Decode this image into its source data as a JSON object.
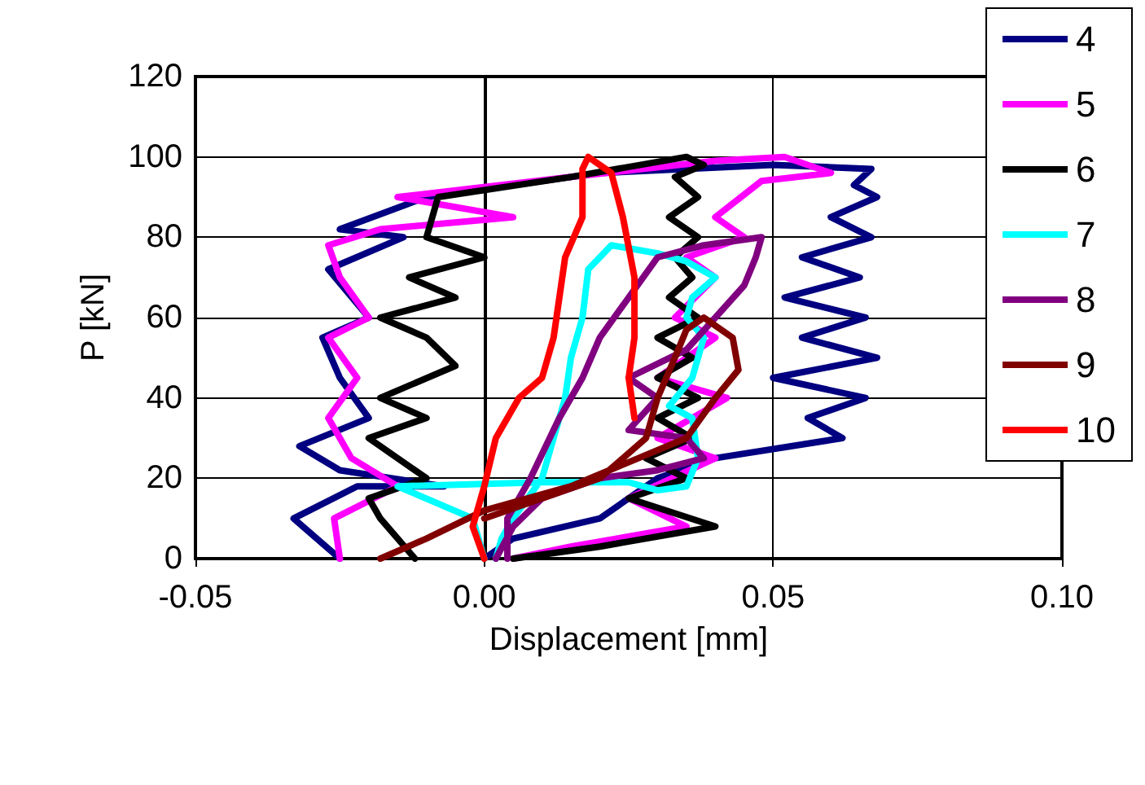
{
  "chart_data": {
    "type": "line",
    "xlabel": "Displacement [mm]",
    "ylabel": "P [kN]",
    "xlim": [
      -0.05,
      0.1
    ],
    "xticks": [
      {
        "value": -0.05,
        "label": "-0.05"
      },
      {
        "value": 0,
        "label": "0.00"
      },
      {
        "value": 0.05,
        "label": "0.05"
      },
      {
        "value": 0.1,
        "label": "0.10"
      }
    ],
    "ylim": [
      0,
      120
    ],
    "yticks": [
      0,
      20,
      40,
      60,
      80,
      100,
      120
    ],
    "grid": true,
    "legend": "right",
    "marker": "none",
    "line_style": "solid",
    "series": [
      {
        "name": "4",
        "color": "#000080",
        "x": [
          -0.025,
          -0.033,
          -0.022,
          -0.007,
          -0.025,
          -0.032,
          -0.02,
          -0.025,
          -0.028,
          -0.02,
          -0.027,
          -0.014,
          -0.025,
          -0.01,
          0.02,
          0.05,
          0.067,
          0.064,
          0.068,
          0.06,
          0.067,
          0.055,
          0.065,
          0.052,
          0.066,
          0.055,
          0.068,
          0.05,
          0.066,
          0.056,
          0.062,
          0.04,
          0.03,
          0.02,
          0.005,
          0.0
        ],
        "values": [
          0,
          10,
          18,
          18,
          22,
          28,
          35,
          45,
          55,
          60,
          72,
          80,
          82,
          90,
          96,
          98,
          97,
          93,
          90,
          85,
          80,
          75,
          70,
          65,
          60,
          55,
          50,
          45,
          40,
          35,
          30,
          25,
          20,
          10,
          5,
          0
        ]
      },
      {
        "name": "5",
        "color": "#ff00ff",
        "x": [
          -0.025,
          -0.026,
          -0.015,
          -0.023,
          -0.027,
          -0.022,
          -0.027,
          -0.02,
          -0.025,
          -0.027,
          -0.018,
          0.005,
          -0.015,
          0.015,
          0.04,
          0.052,
          0.06,
          0.048,
          0.04,
          0.045,
          0.035,
          0.04,
          0.033,
          0.04,
          0.03,
          0.042,
          0.03,
          0.04,
          0.025,
          0.035,
          0.015,
          0.005
        ],
        "values": [
          0,
          10,
          18,
          25,
          35,
          45,
          55,
          60,
          70,
          78,
          82,
          85,
          90,
          95,
          99,
          100,
          96,
          94,
          85,
          80,
          75,
          70,
          60,
          55,
          45,
          40,
          30,
          25,
          15,
          8,
          3,
          0
        ]
      },
      {
        "name": "6",
        "color": "#000000",
        "x": [
          -0.012,
          -0.018,
          -0.02,
          -0.01,
          -0.015,
          -0.02,
          -0.01,
          -0.018,
          -0.005,
          -0.01,
          -0.018,
          -0.005,
          -0.013,
          0.0,
          -0.01,
          -0.008,
          0.015,
          0.035,
          0.038,
          0.033,
          0.037,
          0.032,
          0.037,
          0.033,
          0.036,
          0.032,
          0.037,
          0.03,
          0.036,
          0.03,
          0.037,
          0.03,
          0.036,
          0.028,
          0.035,
          0.025,
          0.04,
          0.02,
          0.005
        ],
        "values": [
          0,
          10,
          15,
          20,
          25,
          30,
          35,
          40,
          48,
          55,
          60,
          65,
          70,
          75,
          80,
          90,
          95,
          100,
          98,
          95,
          90,
          85,
          80,
          75,
          70,
          65,
          60,
          55,
          50,
          45,
          40,
          35,
          30,
          25,
          20,
          15,
          8,
          3,
          0
        ]
      },
      {
        "name": "7",
        "color": "#00ffff",
        "x": [
          0,
          -0.002,
          -0.015,
          0.01,
          0.025,
          0.03,
          0.035,
          0.037,
          0.036,
          0.032,
          0.036,
          0.038,
          0.035,
          0.036,
          0.04,
          0.035,
          0.03,
          0.022,
          0.018,
          0.017,
          0.015,
          0.014,
          0.012,
          0.01,
          0.005,
          0.003,
          0.002
        ],
        "values": [
          0,
          10,
          18,
          19,
          19,
          17,
          18,
          25,
          35,
          38,
          45,
          55,
          60,
          65,
          70,
          74,
          76,
          78,
          72,
          60,
          50,
          40,
          30,
          20,
          10,
          5,
          0
        ]
      },
      {
        "name": "8",
        "color": "#800080",
        "x": [
          0.002,
          0.005,
          0.01,
          0.02,
          0.03,
          0.038,
          0.035,
          0.025,
          0.03,
          0.025,
          0.035,
          0.04,
          0.045,
          0.047,
          0.048,
          0.038,
          0.03,
          0.025,
          0.02,
          0.017,
          0.013,
          0.008,
          0.004,
          0.004
        ],
        "values": [
          0,
          8,
          15,
          20,
          22,
          25,
          30,
          32,
          40,
          45,
          52,
          60,
          68,
          75,
          80,
          78,
          75,
          65,
          55,
          45,
          35,
          20,
          10,
          0
        ]
      },
      {
        "name": "9",
        "color": "#800000",
        "x": [
          -0.018,
          -0.01,
          0.0,
          0.015,
          0.025,
          0.035,
          0.04,
          0.044,
          0.043,
          0.038,
          0.035,
          0.033,
          0.03,
          0.028,
          0.02,
          0.01,
          0.0
        ],
        "values": [
          0,
          5,
          12,
          18,
          24,
          30,
          40,
          47,
          55,
          60,
          57,
          50,
          40,
          30,
          20,
          15,
          10
        ]
      },
      {
        "name": "10",
        "color": "#ff0000",
        "x": [
          0.0,
          -0.002,
          0.0,
          0.002,
          0.006,
          0.01,
          0.012,
          0.014,
          0.017,
          0.017,
          0.018,
          0.022,
          0.024,
          0.026,
          0.026,
          0.025,
          0.026
        ],
        "values": [
          0,
          8,
          18,
          30,
          40,
          45,
          55,
          75,
          85,
          97,
          100,
          96,
          85,
          70,
          55,
          45,
          35
        ]
      }
    ]
  }
}
